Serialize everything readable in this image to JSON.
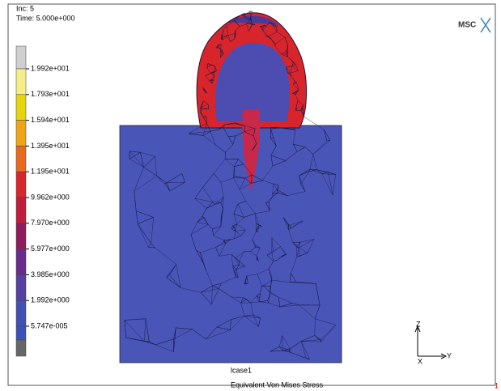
{
  "header": {
    "inc": "Inc: 5",
    "time": "Time: 5.000e+000"
  },
  "logo": "MSC",
  "legend": {
    "labels": [
      "1.992e+001",
      "1.793e+001",
      "1.594e+001",
      "1.395e+001",
      "1.195e+001",
      "9.962e+000",
      "7.970e+000",
      "5.977e+000",
      "3.985e+000",
      "1.992e+000",
      "5.747e-005"
    ]
  },
  "triad": {
    "z": "Z",
    "x": "X",
    "y": "Y"
  },
  "footer": {
    "case": "lcase1",
    "quantity": "Equivalent Von Mises Stress",
    "window": "1"
  }
}
